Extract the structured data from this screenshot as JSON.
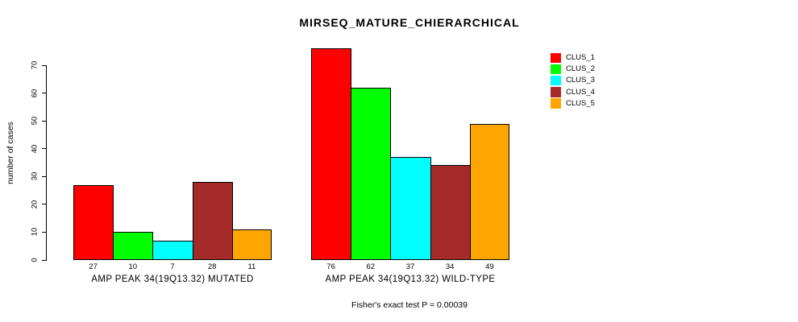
{
  "chart_data": {
    "type": "bar",
    "title": "MIRSEQ_MATURE_CHIERARCHICAL",
    "ylabel": "number of cases",
    "xlabel": "",
    "annotation": "Fisher's exact test P = 0.00039",
    "ylim": [
      0,
      70
    ],
    "yticks": [
      0,
      10,
      20,
      30,
      40,
      50,
      60,
      70
    ],
    "grid": false,
    "legend_position": "topright",
    "bar_value_labels": true,
    "categories": [
      "AMP PEAK 34(19Q13.32) MUTATED",
      "AMP PEAK 34(19Q13.32) WILD-TYPE"
    ],
    "series": [
      {
        "name": "CLUS_1",
        "color": "#FF0000",
        "values": [
          27,
          76
        ]
      },
      {
        "name": "CLUS_2",
        "color": "#00FF00",
        "values": [
          10,
          62
        ]
      },
      {
        "name": "CLUS_3",
        "color": "#00FFFF",
        "values": [
          7,
          37
        ]
      },
      {
        "name": "CLUS_4",
        "color": "#A52A2A",
        "values": [
          28,
          34
        ]
      },
      {
        "name": "CLUS_5",
        "color": "#FFA500",
        "values": [
          11,
          49
        ]
      }
    ]
  }
}
